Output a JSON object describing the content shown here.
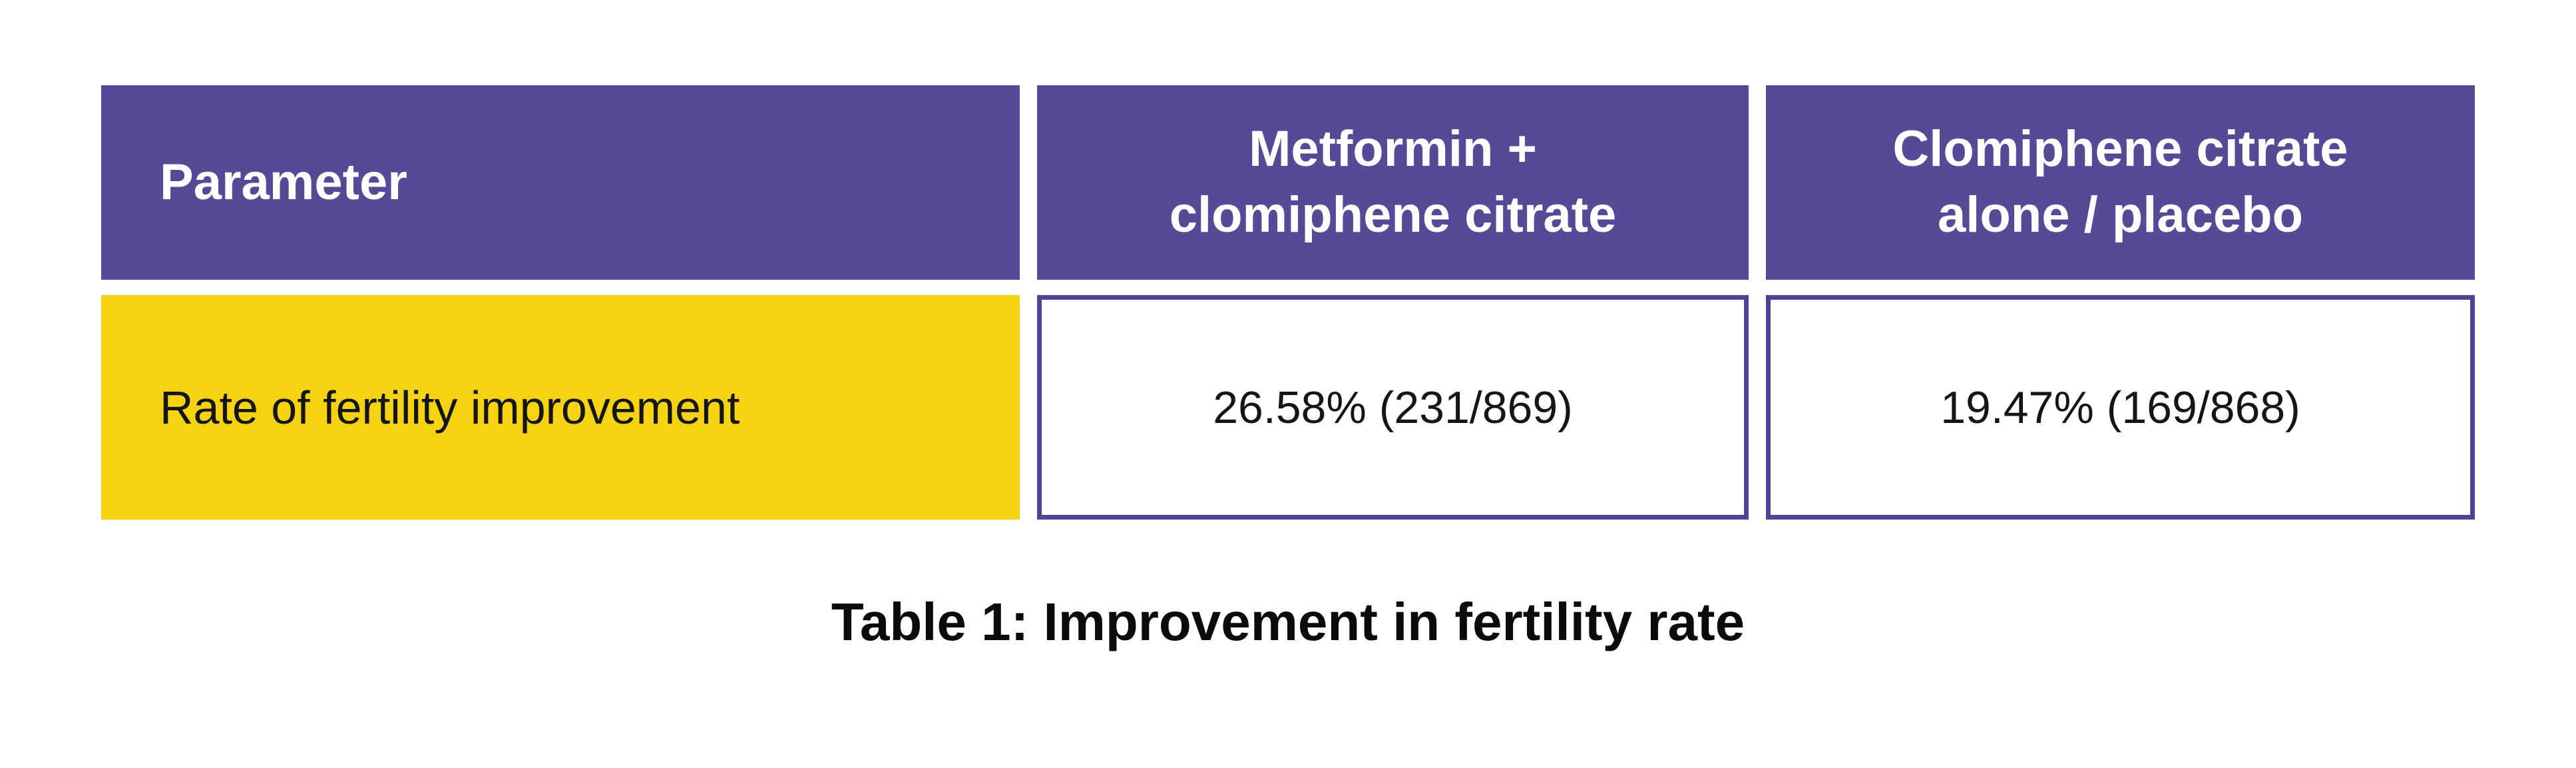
{
  "chart_data": {
    "type": "table",
    "title": "Table 1: Improvement in fertility rate",
    "columns": [
      "Parameter",
      "Metformin + clomiphene citrate",
      "Clomiphene citrate alone / placebo"
    ],
    "rows": [
      [
        "Rate of fertility improvement",
        "26.58% (231/869)",
        "19.47% (169/868)"
      ]
    ],
    "values": {
      "metformin_clomiphene_rate_pct": 26.58,
      "metformin_clomiphene_fraction": "231/869",
      "clomiphene_alone_placebo_rate_pct": 19.47,
      "clomiphene_alone_placebo_fraction": "169/868"
    },
    "layout_hints": {
      "header_style": "purple-filled",
      "row_label_style": "yellow-filled",
      "value_cell_style": "white-with-purple-border",
      "caption_position": "bottom-center"
    }
  },
  "header_lines": {
    "col2": [
      "Metformin +",
      "clomiphene citrate"
    ],
    "col3": [
      "Clomiphene citrate",
      "alone / placebo"
    ]
  },
  "colors": {
    "header_bg": "#564A96",
    "cell_border": "#4E4397",
    "row_highlight": "#F5D313",
    "header_text": "#FFFFFF",
    "body_text": "#151515",
    "caption_text": "#0B0B0B",
    "page_bg": "#FFFFFF"
  }
}
